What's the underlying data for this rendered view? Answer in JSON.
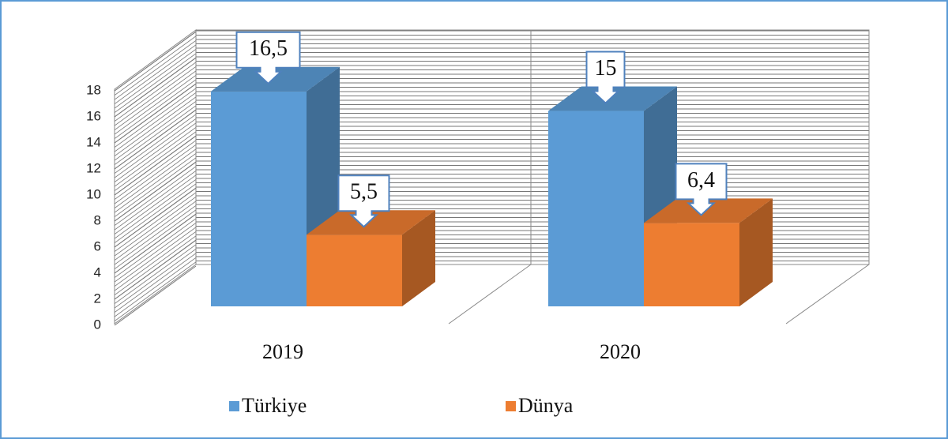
{
  "chart_data": {
    "type": "bar",
    "categories": [
      "2019",
      "2020"
    ],
    "series": [
      {
        "name": "Türkiye",
        "color": "#5b9bd5",
        "values": [
          16.5,
          15
        ],
        "value_labels": [
          "16,5",
          "15"
        ]
      },
      {
        "name": "Dünya",
        "color": "#ed7d31",
        "values": [
          5.5,
          6.4
        ],
        "value_labels": [
          "5,5",
          "6,4"
        ]
      }
    ],
    "ylim": [
      0,
      18
    ],
    "yticks": [
      0,
      2,
      4,
      6,
      8,
      10,
      12,
      14,
      16,
      18
    ],
    "grid": true,
    "legend": "bottom"
  }
}
